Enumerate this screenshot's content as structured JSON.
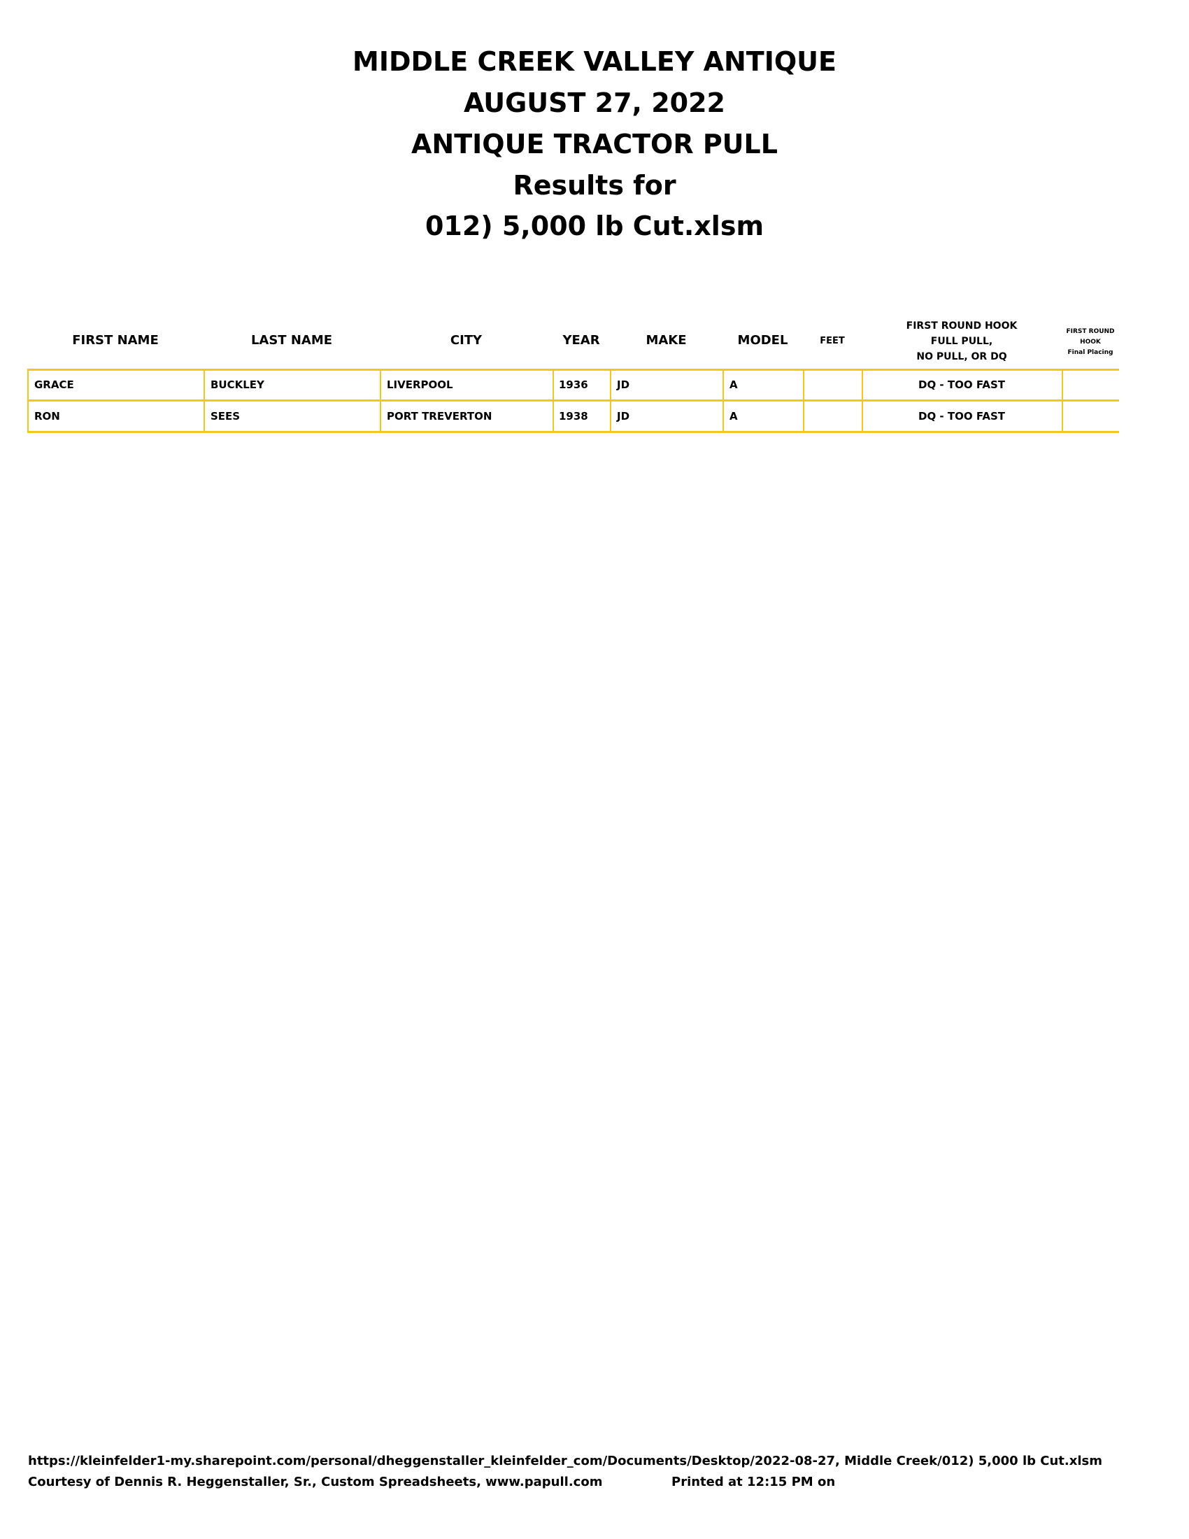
{
  "titles": [
    "MIDDLE CREEK VALLEY ANTIQUE",
    "AUGUST 27, 2022",
    "ANTIQUE TRACTOR PULL",
    "Results for",
    "012) 5,000 lb Cut.xlsm"
  ],
  "table": {
    "headers": {
      "first_name": "FIRST NAME",
      "last_name": "LAST NAME",
      "city": "CITY",
      "year": "YEAR",
      "make": "MAKE",
      "model": "MODEL",
      "feet": "FEET",
      "hook_line1": "FIRST ROUND HOOK",
      "hook_line2": "FULL PULL,",
      "hook_line3": "NO PULL, OR DQ",
      "placing_line1": "FIRST ROUND",
      "placing_line2": "HOOK",
      "placing_line3": "Final Placing"
    },
    "rows": [
      {
        "first_name": "GRACE",
        "last_name": "BUCKLEY",
        "city": "LIVERPOOL",
        "year": "1936",
        "make": "JD",
        "model": "A",
        "feet": "",
        "result": "DQ - TOO FAST",
        "placing": ""
      },
      {
        "first_name": "RON",
        "last_name": "SEES",
        "city": "PORT TREVERTON",
        "year": "1938",
        "make": "JD",
        "model": "A",
        "feet": "",
        "result": "DQ - TOO FAST",
        "placing": ""
      }
    ],
    "border_color": "#f2c81c"
  },
  "footer": {
    "path": "https://kleinfelder1-my.sharepoint.com/personal/dheggenstaller_kleinfelder_com/Documents/Desktop/2022-08-27, Middle Creek/012) 5,000 lb Cut.xlsm",
    "courtesy": "Courtesy of Dennis R. Heggenstaller, Sr., Custom Spreadsheets, www.papull.com",
    "printed": "Printed at 12:15 PM on"
  }
}
